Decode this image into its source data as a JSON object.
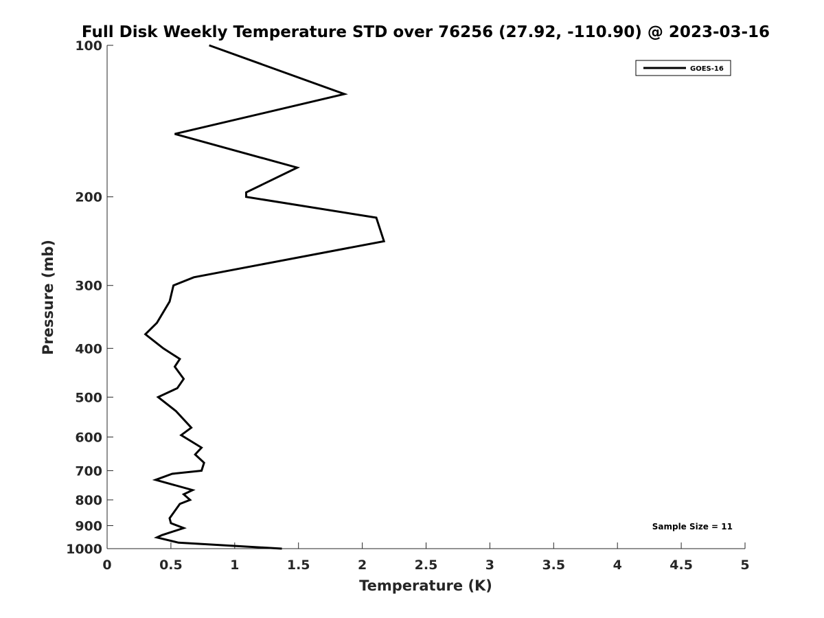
{
  "chart_data": {
    "type": "line",
    "title": "Full Disk Weekly Temperature STD over 76256 (27.92, -110.90) @ 2023-03-16",
    "xlabel": "Temperature (K)",
    "ylabel": "Pressure (mb)",
    "xlim": [
      0,
      5
    ],
    "ylim": [
      100,
      1000
    ],
    "y_scale": "log",
    "y_reversed": true,
    "x_ticks": [
      0,
      0.5,
      1,
      1.5,
      2,
      2.5,
      3,
      3.5,
      4,
      4.5,
      5
    ],
    "x_tick_labels": [
      "0",
      "0.5",
      "1",
      "1.5",
      "2",
      "2.5",
      "3",
      "3.5",
      "4",
      "4.5",
      "5"
    ],
    "y_ticks": [
      100,
      200,
      300,
      400,
      500,
      600,
      700,
      800,
      900,
      1000
    ],
    "y_tick_labels": [
      "100",
      "200",
      "300",
      "400",
      "500",
      "600",
      "700",
      "800",
      "900",
      "1000"
    ],
    "grid": false,
    "legend_position": "top-right",
    "annotation": "Sample Size = 11",
    "series": [
      {
        "name": "GOES-16",
        "color": "#000000",
        "x": [
          0.8,
          1.86,
          0.53,
          1.49,
          1.09,
          1.09,
          2.11,
          2.17,
          0.68,
          0.52,
          0.49,
          0.39,
          0.3,
          0.34,
          0.44,
          0.57,
          0.53,
          0.6,
          0.55,
          0.4,
          0.54,
          0.66,
          0.58,
          0.74,
          0.69,
          0.76,
          0.74,
          0.51,
          0.38,
          0.67,
          0.6,
          0.65,
          0.57,
          0.49,
          0.5,
          0.6,
          0.43,
          0.39,
          0.56,
          1.37
        ],
        "y": [
          100,
          125,
          150,
          175,
          196,
          200,
          220,
          245,
          289,
          300,
          323,
          356,
          375,
          382,
          400,
          420,
          435,
          460,
          480,
          500,
          533,
          575,
          595,
          630,
          650,
          675,
          700,
          710,
          730,
          765,
          780,
          800,
          815,
          870,
          890,
          910,
          940,
          950,
          973,
          1000
        ]
      }
    ]
  }
}
